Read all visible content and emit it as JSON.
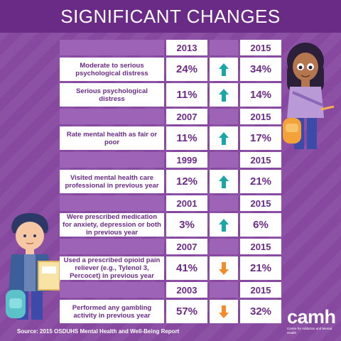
{
  "header": {
    "title": "SIGNIFICANT CHANGES"
  },
  "colors": {
    "header_bg": "#6a2b86",
    "background": "#8a4fa3",
    "text_purple": "#6a2b86",
    "arrow_up": "#1aa6a3",
    "arrow_down": "#f28c2a"
  },
  "sections": [
    {
      "year_from": "2013",
      "year_to": "2015",
      "rows": [
        {
          "label": "Moderate to serious psychological distress",
          "from": "24%",
          "to": "34%",
          "trend": "up"
        },
        {
          "label": "Serious psychological distress",
          "from": "11%",
          "to": "14%",
          "trend": "up"
        }
      ]
    },
    {
      "year_from": "2007",
      "year_to": "2015",
      "rows": [
        {
          "label": "Rate mental health as fair or poor",
          "from": "11%",
          "to": "17%",
          "trend": "up"
        }
      ]
    },
    {
      "year_from": "1999",
      "year_to": "2015",
      "rows": [
        {
          "label": "Visited mental health care professional in previous year",
          "from": "12%",
          "to": "21%",
          "trend": "up"
        }
      ]
    },
    {
      "year_from": "2001",
      "year_to": "2015",
      "rows": [
        {
          "label": "Were prescribed medication for anxiety, depression or both in previous year",
          "from": "3%",
          "to": "6%",
          "trend": "up"
        }
      ]
    },
    {
      "year_from": "2007",
      "year_to": "2015",
      "rows": [
        {
          "label": "Used a prescribed opioid pain reliever (e.g., Tylenol 3, Percocet) in previous year",
          "from": "41%",
          "to": "21%",
          "trend": "down"
        }
      ]
    },
    {
      "year_from": "2003",
      "year_to": "2015",
      "rows": [
        {
          "label": "Performed any gambling activity in previous year",
          "from": "57%",
          "to": "32%",
          "trend": "down"
        }
      ]
    }
  ],
  "source": "Source: 2015 OSDUHS Mental Health and Well-Being Report",
  "logo": {
    "word": "camh",
    "tagline": "Centre for Addiction and Mental Health"
  }
}
